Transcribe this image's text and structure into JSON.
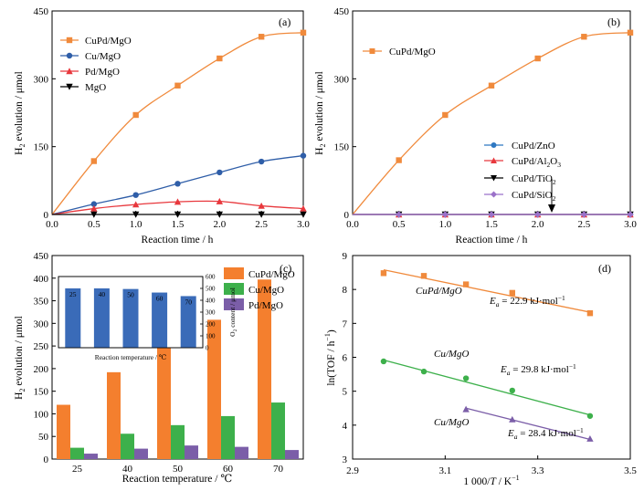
{
  "chart_data": [
    {
      "panel": "(a)",
      "type": "line",
      "xlabel": "Reaction time / h",
      "ylabel": "H2 evolution / μmol",
      "xlim": [
        0,
        3
      ],
      "ylim": [
        0,
        450
      ],
      "xticks": [
        "0.0",
        "0.5",
        "1.0",
        "1.5",
        "2.0",
        "2.5",
        "3.0"
      ],
      "yticks": [
        "0",
        "150",
        "300",
        "450"
      ],
      "legend_position": "top-left",
      "series": [
        {
          "name": "CuPd/MgO",
          "color": "#f08a3c",
          "marker": "square",
          "x": [
            0,
            0.5,
            1.0,
            1.5,
            2.0,
            2.5,
            3.0
          ],
          "y": [
            0,
            118,
            220,
            285,
            345,
            393,
            402
          ]
        },
        {
          "name": "Cu/MgO",
          "color": "#2f5ea8",
          "marker": "circle",
          "x": [
            0,
            0.5,
            1.0,
            1.5,
            2.0,
            2.5,
            3.0
          ],
          "y": [
            0,
            23,
            43,
            68,
            93,
            117,
            130
          ]
        },
        {
          "name": "Pd/MgO",
          "color": "#e8383d",
          "marker": "triangle",
          "x": [
            0,
            0.5,
            1.0,
            1.5,
            2.0,
            2.5,
            3.0
          ],
          "y": [
            0,
            13,
            22,
            28,
            29,
            19,
            13
          ]
        },
        {
          "name": "MgO",
          "color": "#000000",
          "marker": "triangle-down",
          "x": [
            0,
            0.5,
            1.0,
            1.5,
            2.0,
            2.5,
            3.0
          ],
          "y": [
            0,
            0,
            0,
            0,
            0,
            0,
            0
          ]
        }
      ]
    },
    {
      "panel": "(b)",
      "type": "line",
      "xlabel": "Reaction time / h",
      "ylabel": "H2 evolution / μmol",
      "xlim": [
        0,
        3
      ],
      "ylim": [
        0,
        450
      ],
      "xticks": [
        "0.0",
        "0.5",
        "1.0",
        "1.5",
        "2.0",
        "2.5",
        "3.0"
      ],
      "yticks": [
        "0",
        "150",
        "300",
        "450"
      ],
      "series": [
        {
          "name": "CuPd/MgO",
          "color": "#f08a3c",
          "marker": "square",
          "x": [
            0,
            0.5,
            1.0,
            1.5,
            2.0,
            2.5,
            3.0
          ],
          "y": [
            0,
            120,
            220,
            285,
            345,
            393,
            402
          ]
        },
        {
          "name": "CuPd/ZnO",
          "color": "#2f78c2",
          "marker": "circle",
          "x": [
            0,
            0.5,
            1.0,
            1.5,
            2.0,
            2.5,
            3.0
          ],
          "y": [
            0,
            0,
            0,
            0,
            0,
            0,
            0
          ]
        },
        {
          "name": "CuPd/Al2O3",
          "color": "#e8383d",
          "marker": "triangle",
          "x": [
            0,
            0.5,
            1.0,
            1.5,
            2.0,
            2.5,
            3.0
          ],
          "y": [
            0,
            0,
            0,
            0,
            0,
            0,
            0
          ]
        },
        {
          "name": "CuPd/TiO2",
          "color": "#000000",
          "marker": "triangle-down",
          "x": [
            0,
            0.5,
            1.0,
            1.5,
            2.0,
            2.5,
            3.0
          ],
          "y": [
            0,
            0,
            0,
            0,
            0,
            0,
            0
          ]
        },
        {
          "name": "CuPd/SiO2",
          "color": "#9b72c9",
          "marker": "diamond",
          "x": [
            0,
            0.5,
            1.0,
            1.5,
            2.0,
            2.5,
            3.0
          ],
          "y": [
            0,
            0,
            0,
            0,
            0,
            0,
            0
          ]
        }
      ]
    },
    {
      "panel": "(c)",
      "type": "bar",
      "xlabel": "Reaction temperature / ℃",
      "ylabel": "H2 evolution / μmol",
      "ylim": [
        0,
        450
      ],
      "yticks": [
        "0",
        "50",
        "100",
        "150",
        "200",
        "250",
        "300",
        "350",
        "400",
        "450"
      ],
      "categories": [
        "25",
        "40",
        "50",
        "60",
        "70"
      ],
      "legend_position": "top-right",
      "series": [
        {
          "name": "CuPd/MgO",
          "color": "#f47f2e",
          "values": [
            120,
            192,
            255,
            308,
            397
          ]
        },
        {
          "name": "Cu/MgO",
          "color": "#3db04b",
          "values": [
            25,
            56,
            75,
            95,
            125
          ]
        },
        {
          "name": "Pd/MgO",
          "color": "#7b5ea8",
          "values": [
            12,
            23,
            30,
            27,
            20
          ]
        }
      ],
      "inset": {
        "type": "bar",
        "xlabel": "Reaction temperature / ℃",
        "ylabel": "O2 content / μmol",
        "ylim": [
          0,
          600
        ],
        "yticks": [
          "0",
          "100",
          "200",
          "300",
          "400",
          "500",
          "600"
        ],
        "categories": [
          "25",
          "40",
          "50",
          "60",
          "70"
        ],
        "bar_labels": [
          "25",
          "40",
          "50",
          "60",
          "70"
        ],
        "color": "#3a6bb8",
        "values": [
          500,
          500,
          495,
          465,
          435
        ]
      }
    },
    {
      "panel": "(d)",
      "type": "scatter",
      "xlabel": "1 000/T / K⁻¹",
      "ylabel": "ln(TOF / h⁻¹)",
      "xlim": [
        2.9,
        3.5
      ],
      "ylim": [
        3,
        9
      ],
      "xticks": [
        "2.9",
        "3.1",
        "3.3",
        "3.5"
      ],
      "yticks": [
        "3",
        "4",
        "5",
        "6",
        "7",
        "8",
        "9"
      ],
      "series": [
        {
          "name": "CuPd/MgO",
          "annotation": "Ea = 22.9 kJ·mol⁻¹",
          "color": "#f08a3c",
          "marker": "square",
          "x": [
            2.967,
            3.054,
            3.145,
            3.245,
            3.413
          ],
          "y": [
            8.48,
            8.4,
            8.15,
            7.9,
            7.3
          ],
          "fit_y": [
            8.58,
            7.33
          ]
        },
        {
          "name": "Cu/MgO",
          "annotation": "Ea = 29.8 kJ·mol⁻¹",
          "color": "#3db04b",
          "marker": "circle",
          "x": [
            2.967,
            3.054,
            3.145,
            3.245,
            3.413
          ],
          "y": [
            5.88,
            5.58,
            5.38,
            5.02,
            4.27
          ],
          "fit_y": [
            5.92,
            4.3
          ]
        },
        {
          "name": "Cu/MgO",
          "annotation": "Ea = 28.4 kJ·mol⁻¹",
          "color": "#7b5ea8",
          "marker": "triangle",
          "x": [
            3.145,
            3.245,
            3.413
          ],
          "y": [
            4.47,
            4.17,
            3.6
          ],
          "fit_y": [
            4.5,
            3.58
          ]
        }
      ]
    }
  ],
  "labels": {
    "a_panel": "(a)",
    "b_panel": "(b)",
    "c_panel": "(c)",
    "d_panel": "(d)",
    "h2_main": "H",
    "h2_sub": "2",
    "h2_rest": " evolution / μmol",
    "o2_main": "O",
    "o2_sub": "2",
    "o2_rest": " content / μmol",
    "time": "Reaction time / h",
    "temp": "Reaction temperature / ℃",
    "inv_t_pre": "1 000/",
    "inv_t_T": "T",
    "inv_t_post": " / K",
    "inv_t_sup": "−1",
    "lntof": "ln(TOF / h",
    "lntof_sup": "−1",
    "lntof_close": ")",
    "b_leg_zno": "CuPd/ZnO",
    "b_leg_al_a": "CuPd/Al",
    "b_leg_al_b": "2",
    "b_leg_al_c": "O",
    "b_leg_al_d": "3",
    "b_leg_ti_a": "CuPd/TiO",
    "b_leg_ti_b": "2",
    "b_leg_si_a": "CuPd/SiO",
    "b_leg_si_b": "2",
    "d_ann1_name": "CuPd/MgO",
    "d_ann2_name": "Cu/MgO",
    "d_ann3_name": "Cu/MgO",
    "ea_E": "E",
    "ea_a": "a",
    "ea1_val": " = 22.9 kJ·mol",
    "ea2_val": " = 29.8 kJ·mol",
    "ea3_val": " = 28.4 kJ·mol",
    "ea_sup": "−1"
  }
}
